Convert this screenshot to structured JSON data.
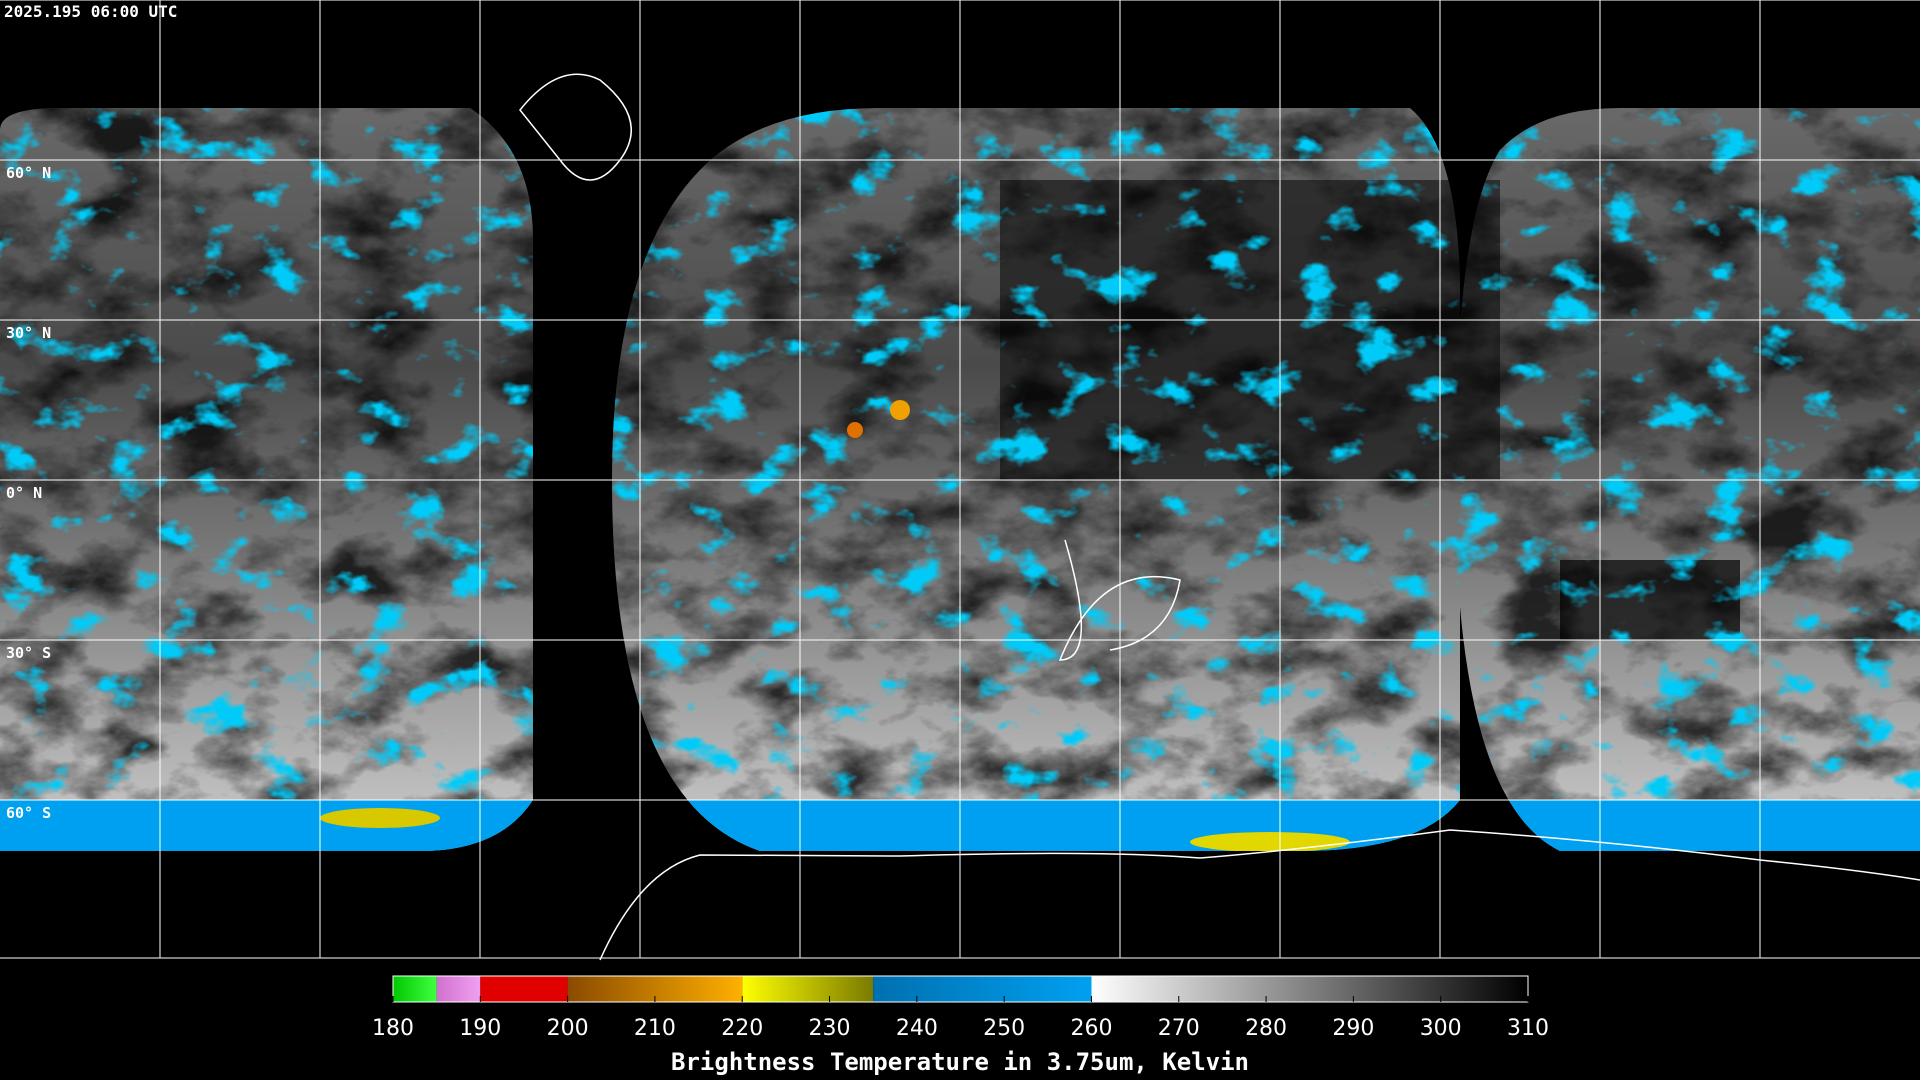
{
  "header": {
    "timestamp": "2025.195 06:00 UTC"
  },
  "map": {
    "lat_labels": [
      "60° N",
      "30° N",
      "0° N",
      "30° S",
      "60° S"
    ]
  },
  "colorbar": {
    "label": "Brightness Temperature in 3.75um, Kelvin",
    "ticks": [
      180,
      190,
      200,
      210,
      220,
      230,
      240,
      250,
      260,
      270,
      280,
      290,
      300,
      310
    ],
    "segments": [
      {
        "from": 180,
        "to": 185,
        "colors": [
          "#00c800",
          "#40ff40"
        ]
      },
      {
        "from": 185,
        "to": 190,
        "colors": [
          "#d070d0",
          "#f0a0f0"
        ]
      },
      {
        "from": 190,
        "to": 200,
        "colors": [
          "#e00000",
          "#e00000"
        ]
      },
      {
        "from": 200,
        "to": 220,
        "colors": [
          "#8a4a00",
          "#ffb000"
        ]
      },
      {
        "from": 220,
        "to": 235,
        "colors": [
          "#ffff00",
          "#7a7a00"
        ]
      },
      {
        "from": 235,
        "to": 260,
        "colors": [
          "#0070b0",
          "#00a0f0"
        ]
      },
      {
        "from": 260,
        "to": 310,
        "colors": [
          "#ffffff",
          "#000000"
        ]
      }
    ]
  }
}
